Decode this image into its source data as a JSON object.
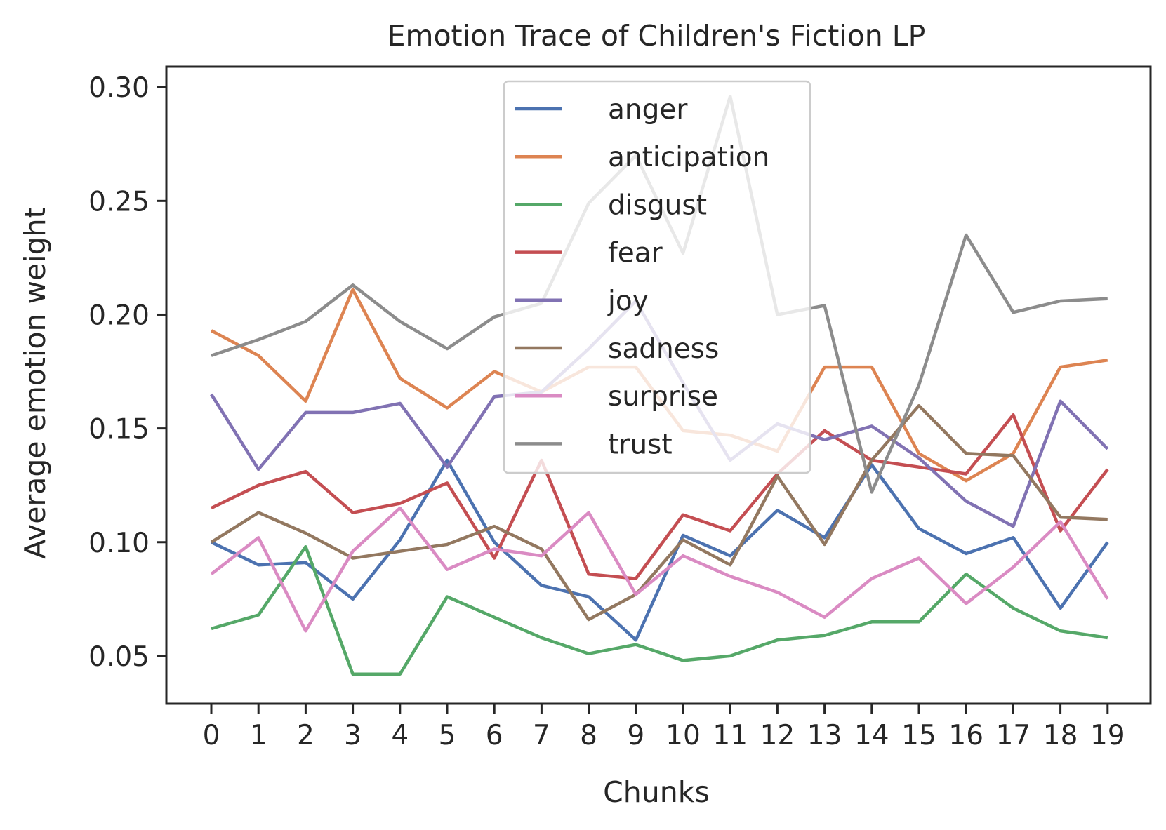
{
  "chart_data": {
    "type": "line",
    "title": "Emotion Trace of Children's Fiction LP",
    "xlabel": "Chunks",
    "ylabel": "Average emotion weight",
    "x": [
      0,
      1,
      2,
      3,
      4,
      5,
      6,
      7,
      8,
      9,
      10,
      11,
      12,
      13,
      14,
      15,
      16,
      17,
      18,
      19
    ],
    "ylim": [
      0.029,
      0.309
    ],
    "yticks": [
      "0.05",
      "0.10",
      "0.15",
      "0.20",
      "0.25",
      "0.30"
    ],
    "ytick_values": [
      0.05,
      0.1,
      0.15,
      0.2,
      0.25,
      0.3
    ],
    "grid": false,
    "legend_position": "top-center",
    "series": [
      {
        "name": "anger",
        "color": "#4c72b0",
        "values": [
          0.1,
          0.09,
          0.091,
          0.075,
          0.101,
          0.136,
          0.1,
          0.081,
          0.076,
          0.057,
          0.103,
          0.094,
          0.114,
          0.102,
          0.134,
          0.106,
          0.095,
          0.102,
          0.071,
          0.1
        ]
      },
      {
        "name": "anticipation",
        "color": "#dd8452",
        "values": [
          0.193,
          0.182,
          0.162,
          0.211,
          0.172,
          0.159,
          0.175,
          0.166,
          0.177,
          0.177,
          0.149,
          0.147,
          0.14,
          0.177,
          0.177,
          0.139,
          0.127,
          0.139,
          0.177,
          0.18
        ]
      },
      {
        "name": "disgust",
        "color": "#55a868",
        "values": [
          0.062,
          0.068,
          0.098,
          0.042,
          0.042,
          0.076,
          0.067,
          0.058,
          0.051,
          0.055,
          0.048,
          0.05,
          0.057,
          0.059,
          0.065,
          0.065,
          0.086,
          0.071,
          0.061,
          0.058
        ]
      },
      {
        "name": "fear",
        "color": "#c44e52",
        "values": [
          0.115,
          0.125,
          0.131,
          0.113,
          0.117,
          0.126,
          0.093,
          0.136,
          0.086,
          0.084,
          0.112,
          0.105,
          0.13,
          0.149,
          0.136,
          0.133,
          0.13,
          0.156,
          0.105,
          0.132
        ]
      },
      {
        "name": "joy",
        "color": "#8172b3",
        "values": [
          0.165,
          0.132,
          0.157,
          0.157,
          0.161,
          0.133,
          0.164,
          0.166,
          0.185,
          0.206,
          0.17,
          0.136,
          0.152,
          0.145,
          0.151,
          0.137,
          0.118,
          0.107,
          0.162,
          0.141
        ]
      },
      {
        "name": "sadness",
        "color": "#937860",
        "values": [
          0.1,
          0.113,
          0.104,
          0.093,
          0.096,
          0.099,
          0.107,
          0.097,
          0.066,
          0.077,
          0.101,
          0.09,
          0.129,
          0.099,
          0.136,
          0.16,
          0.139,
          0.138,
          0.111,
          0.11
        ]
      },
      {
        "name": "surprise",
        "color": "#da8bc3",
        "values": [
          0.086,
          0.102,
          0.061,
          0.096,
          0.115,
          0.088,
          0.097,
          0.094,
          0.113,
          0.077,
          0.094,
          0.085,
          0.078,
          0.067,
          0.084,
          0.093,
          0.073,
          0.089,
          0.109,
          0.075
        ]
      },
      {
        "name": "trust",
        "color": "#8c8c8c",
        "values": [
          0.182,
          0.189,
          0.197,
          0.213,
          0.197,
          0.185,
          0.199,
          0.205,
          0.249,
          0.27,
          0.227,
          0.296,
          0.2,
          0.204,
          0.122,
          0.169,
          0.235,
          0.201,
          0.206,
          0.207
        ]
      }
    ]
  }
}
